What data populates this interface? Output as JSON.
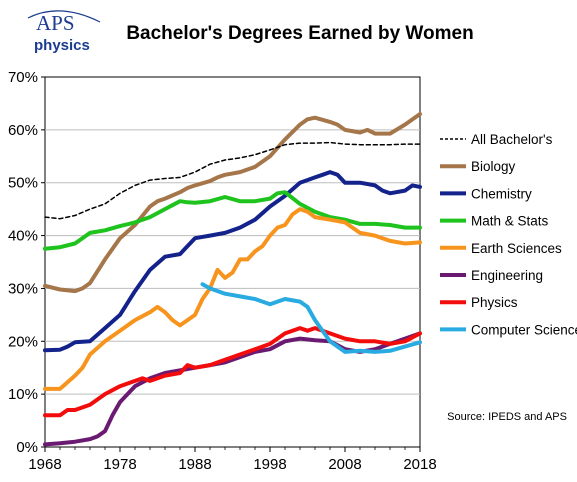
{
  "logo": {
    "main": "APS",
    "sub": "physics"
  },
  "chart_data": {
    "type": "line",
    "title": "Bachelor's Degrees Earned by Women",
    "xlabel": "",
    "ylabel": "",
    "xlim": [
      1968,
      2018
    ],
    "ylim": [
      0,
      70
    ],
    "x_ticks": [
      1968,
      1978,
      1988,
      1998,
      2008,
      2018
    ],
    "y_ticks": [
      "0%",
      "10%",
      "20%",
      "30%",
      "40%",
      "50%",
      "60%",
      "70%"
    ],
    "grid": "horizontal",
    "legend_position": "right",
    "source": "Source: IPEDS and APS",
    "series": [
      {
        "name": "All Bachelor's",
        "color": "#000000",
        "dashed": true,
        "x": [
          1968,
          1970,
          1972,
          1974,
          1976,
          1978,
          1980,
          1982,
          1984,
          1986,
          1988,
          1990,
          1992,
          1994,
          1996,
          1998,
          2000,
          2002,
          2004,
          2006,
          2008,
          2010,
          2012,
          2014,
          2016,
          2018
        ],
        "values": [
          43.5,
          43.2,
          43.8,
          45.0,
          46.0,
          48.0,
          49.5,
          50.5,
          50.8,
          51.0,
          52.0,
          53.5,
          54.3,
          54.7,
          55.3,
          56.2,
          57.2,
          57.5,
          57.5,
          57.6,
          57.3,
          57.2,
          57.2,
          57.2,
          57.3,
          57.3
        ]
      },
      {
        "name": "Biology",
        "color": "#a5764a",
        "x": [
          1968,
          1970,
          1972,
          1973,
          1974,
          1976,
          1978,
          1980,
          1982,
          1983,
          1984,
          1986,
          1987,
          1988,
          1990,
          1991,
          1992,
          1994,
          1996,
          1998,
          2000,
          2002,
          2003,
          2004,
          2006,
          2007,
          2008,
          2010,
          2011,
          2012,
          2014,
          2016,
          2018
        ],
        "values": [
          30.5,
          29.8,
          29.5,
          30.0,
          31.0,
          35.5,
          39.5,
          42.0,
          45.5,
          46.5,
          47.0,
          48.2,
          49.0,
          49.5,
          50.3,
          51.0,
          51.5,
          52.0,
          53.0,
          55.0,
          58.2,
          61.0,
          62.0,
          62.3,
          61.5,
          61.0,
          60.0,
          59.5,
          60.0,
          59.3,
          59.3,
          61.0,
          63.0
        ]
      },
      {
        "name": "Chemistry",
        "color": "#14228c",
        "x": [
          1968,
          1970,
          1971,
          1972,
          1974,
          1976,
          1978,
          1980,
          1982,
          1984,
          1986,
          1987,
          1988,
          1990,
          1992,
          1994,
          1996,
          1998,
          2000,
          2002,
          2004,
          2005,
          2006,
          2007,
          2008,
          2010,
          2012,
          2013,
          2014,
          2016,
          2017,
          2018
        ],
        "values": [
          18.3,
          18.4,
          19.0,
          19.8,
          20.0,
          22.5,
          25.0,
          29.5,
          33.5,
          36.0,
          36.5,
          38.0,
          39.5,
          40.0,
          40.5,
          41.5,
          43.0,
          45.5,
          47.5,
          50.0,
          51.0,
          51.5,
          52.0,
          51.5,
          50.0,
          50.0,
          49.5,
          48.5,
          48.0,
          48.5,
          49.5,
          49.2
        ]
      },
      {
        "name": "Math & Stats",
        "color": "#1ec31e",
        "x": [
          1968,
          1970,
          1972,
          1974,
          1976,
          1978,
          1980,
          1982,
          1984,
          1986,
          1987,
          1988,
          1990,
          1992,
          1994,
          1996,
          1998,
          1999,
          2000,
          2002,
          2004,
          2006,
          2008,
          2010,
          2012,
          2014,
          2016,
          2018
        ],
        "values": [
          37.5,
          37.8,
          38.5,
          40.5,
          41.0,
          41.8,
          42.5,
          43.5,
          45.0,
          46.5,
          46.3,
          46.2,
          46.5,
          47.3,
          46.5,
          46.5,
          47.0,
          48.0,
          48.2,
          46.0,
          44.5,
          43.5,
          43.0,
          42.2,
          42.2,
          42.0,
          41.5,
          41.5
        ]
      },
      {
        "name": "Earth Sciences",
        "color": "#f7941d",
        "x": [
          1968,
          1970,
          1972,
          1973,
          1974,
          1976,
          1978,
          1980,
          1982,
          1983,
          1984,
          1985,
          1986,
          1988,
          1989,
          1990,
          1991,
          1992,
          1993,
          1994,
          1995,
          1996,
          1997,
          1998,
          1999,
          2000,
          2001,
          2002,
          2003,
          2004,
          2006,
          2008,
          2010,
          2012,
          2014,
          2016,
          2018
        ],
        "values": [
          11.0,
          11.0,
          13.5,
          15.0,
          17.5,
          20.0,
          22.0,
          24.0,
          25.5,
          26.5,
          25.5,
          24.0,
          23.0,
          25.0,
          28.0,
          30.0,
          33.5,
          32.0,
          33.0,
          35.5,
          35.5,
          37.0,
          38.0,
          40.0,
          41.5,
          42.0,
          44.0,
          45.0,
          44.5,
          43.5,
          43.0,
          42.5,
          40.5,
          40.0,
          39.0,
          38.5,
          38.7
        ]
      },
      {
        "name": "Engineering",
        "color": "#6b1a72",
        "x": [
          1968,
          1970,
          1972,
          1974,
          1975,
          1976,
          1977,
          1978,
          1980,
          1982,
          1984,
          1986,
          1988,
          1990,
          1992,
          1994,
          1996,
          1998,
          2000,
          2002,
          2004,
          2006,
          2008,
          2010,
          2012,
          2014,
          2016,
          2018
        ],
        "values": [
          0.5,
          0.7,
          1.0,
          1.5,
          2.0,
          3.0,
          6.0,
          8.5,
          11.5,
          13.0,
          14.0,
          14.5,
          15.0,
          15.5,
          16.0,
          17.0,
          18.0,
          18.5,
          20.0,
          20.5,
          20.2,
          20.0,
          18.5,
          18.0,
          18.5,
          19.5,
          20.5,
          21.5
        ]
      },
      {
        "name": "Physics",
        "color": "#f20c0c",
        "x": [
          1968,
          1970,
          1971,
          1972,
          1974,
          1976,
          1978,
          1980,
          1981,
          1982,
          1984,
          1986,
          1987,
          1988,
          1990,
          1992,
          1994,
          1996,
          1998,
          2000,
          2002,
          2003,
          2004,
          2006,
          2008,
          2010,
          2012,
          2014,
          2016,
          2018
        ],
        "values": [
          6.0,
          6.0,
          7.0,
          7.0,
          8.0,
          10.0,
          11.5,
          12.5,
          13.0,
          12.5,
          13.5,
          14.0,
          15.5,
          15.0,
          15.5,
          16.5,
          17.5,
          18.5,
          19.5,
          21.5,
          22.5,
          22.0,
          22.5,
          21.5,
          20.5,
          20.0,
          20.0,
          19.5,
          20.0,
          21.5
        ]
      },
      {
        "name": "Computer Science",
        "color": "#29abe2",
        "x": [
          1989,
          1990,
          1992,
          1994,
          1996,
          1998,
          2000,
          2002,
          2003,
          2004,
          2006,
          2008,
          2010,
          2012,
          2014,
          2016,
          2018
        ],
        "values": [
          30.8,
          30.0,
          29.0,
          28.5,
          28.0,
          27.0,
          28.0,
          27.5,
          26.5,
          24.0,
          20.0,
          18.0,
          18.2,
          18.0,
          18.2,
          19.0,
          19.8
        ]
      }
    ]
  }
}
